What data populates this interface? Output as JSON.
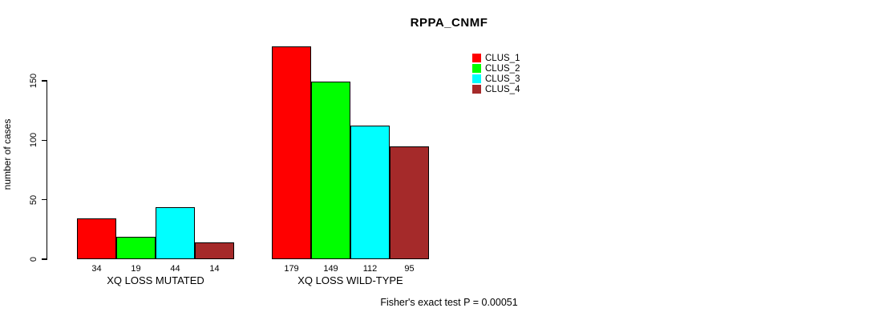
{
  "title": "RPPA_CNMF",
  "footer": "Fisher's exact test P = 0.00051",
  "chart_data": {
    "type": "bar",
    "title": "RPPA_CNMF",
    "xlabel": "",
    "ylabel": "number of cases",
    "categories": [
      "XQ LOSS MUTATED",
      "XQ LOSS WILD-TYPE"
    ],
    "series": [
      {
        "name": "CLUS_1",
        "color": "#ff0000",
        "values": [
          34,
          179
        ]
      },
      {
        "name": "CLUS_2",
        "color": "#00ff00",
        "values": [
          19,
          149
        ]
      },
      {
        "name": "CLUS_3",
        "color": "#00ffff",
        "values": [
          44,
          112
        ]
      },
      {
        "name": "CLUS_4",
        "color": "#a52a2a",
        "values": [
          14,
          95
        ]
      }
    ],
    "y_ticks": [
      0,
      50,
      100,
      150
    ],
    "ylim": [
      0,
      185
    ],
    "grid": false,
    "bar_value_labels_shown": true,
    "legend_position": "top-right",
    "annotation": "Fisher's exact test P = 0.00051"
  }
}
